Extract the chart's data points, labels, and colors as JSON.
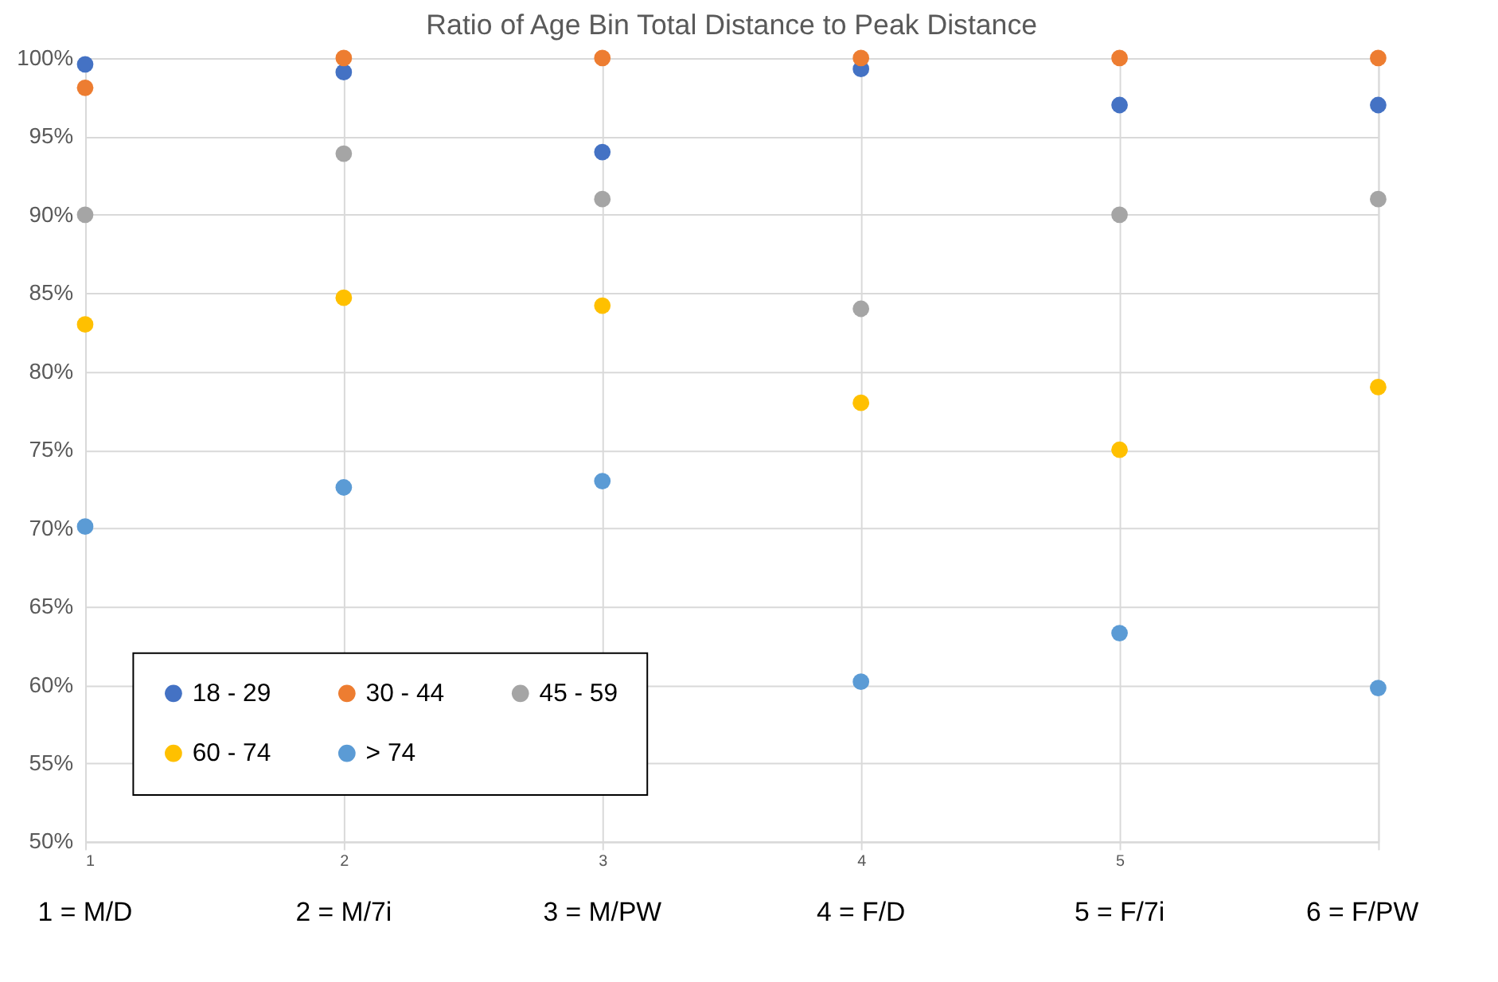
{
  "chart_data": {
    "type": "scatter",
    "title": "Ratio of Age Bin Total Distance to Peak Distance",
    "x": [
      1,
      2,
      3,
      4,
      5,
      6
    ],
    "series": [
      {
        "name": "18 - 29",
        "color": "#4472c4",
        "values": [
          99.6,
          99.1,
          94.0,
          99.3,
          97.0,
          97.0
        ]
      },
      {
        "name": "30 - 44",
        "color": "#ed7d31",
        "values": [
          98.1,
          100,
          100,
          100,
          100,
          100
        ]
      },
      {
        "name": "45 - 59",
        "color": "#a5a5a5",
        "values": [
          90.0,
          93.9,
          91.0,
          84.0,
          90.0,
          91.0
        ]
      },
      {
        "name": "60 - 74",
        "color": "#ffc000",
        "values": [
          83.0,
          84.7,
          84.2,
          78.0,
          75.0,
          79.0
        ]
      },
      {
        "name": "> 74",
        "color": "#5b9bd5",
        "values": [
          70.1,
          72.6,
          73.0,
          60.2,
          63.3,
          59.8
        ]
      }
    ],
    "xlim": [
      1,
      6
    ],
    "xticks": [
      1,
      2,
      3,
      4,
      5,
      {
        "value": 6,
        "label": null
      }
    ],
    "ylim": [
      50,
      100
    ],
    "yticks": [
      {
        "value": 50,
        "label": "50%"
      },
      {
        "value": 55,
        "label": "55%"
      },
      {
        "value": 60,
        "label": "60%"
      },
      {
        "value": 65,
        "label": "65%"
      },
      {
        "value": 70,
        "label": "70%"
      },
      {
        "value": 75,
        "label": "75%"
      },
      {
        "value": 80,
        "label": "80%"
      },
      {
        "value": 85,
        "label": "85%"
      },
      {
        "value": 90,
        "label": "90%"
      },
      {
        "value": 95,
        "label": "95%"
      },
      {
        "value": 100,
        "label": "100%"
      }
    ],
    "annotations": [
      "1 = M/D",
      "2 = M/7i",
      "3 = M/PW",
      "4 = F/D",
      "5 = F/7i",
      "6 = F/PW"
    ],
    "grid": true,
    "legend": "bottom left",
    "marker": "circle"
  }
}
